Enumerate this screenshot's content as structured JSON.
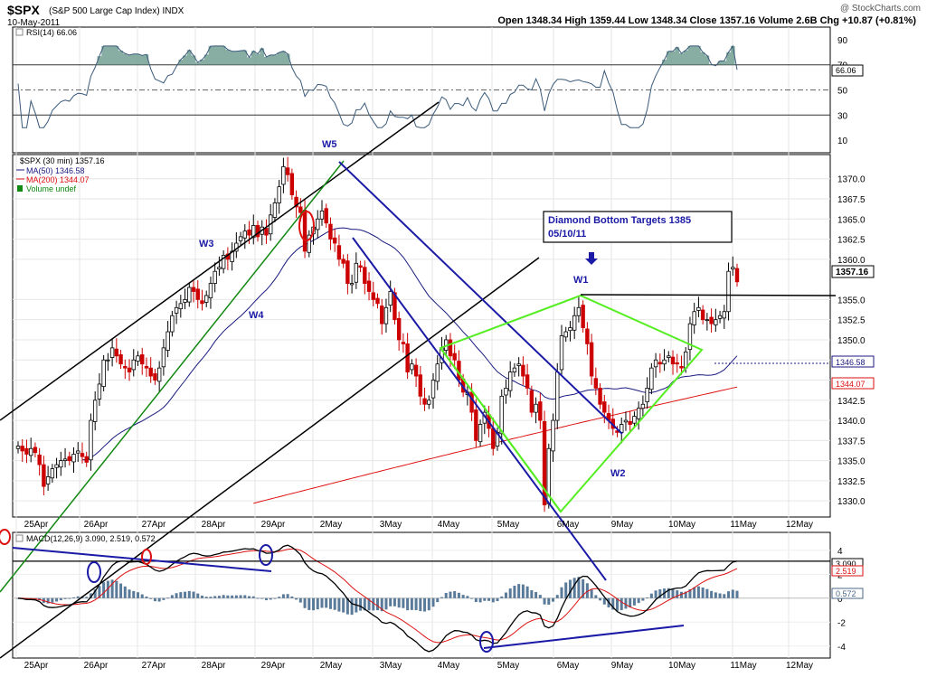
{
  "header": {
    "symbol": "$SPX",
    "name": "(S&P 500 Large Cap Index) INDX",
    "date": "10-May-2011",
    "watermark": "@ StockCharts.com",
    "quote": "Open 1348.34  High 1359.44  Low 1348.34  Close 1357.16  Volume 2.6B  Chg +10.87 (+0.81%)"
  },
  "colors": {
    "up": "#000000",
    "down": "#cc0000",
    "ma50": "#1a1a80",
    "ma200": "#dd1111",
    "annotation_blue": "#1a1aa6",
    "diamond": "#55ee22",
    "channel_green": "#118811",
    "rsi_fill": "#6a9a8c"
  },
  "rsi_panel": {
    "legend": "RSI(14) 66.06",
    "current_label": "66.06",
    "ticks": [
      "90",
      "70",
      "50",
      "30",
      "10"
    ]
  },
  "price_panel": {
    "legend": [
      {
        "text": "$SPX (30 min) 1357.16",
        "color": "#000000"
      },
      {
        "text": "MA(50) 1346.58",
        "color": "#1a1a80"
      },
      {
        "text": "MA(200) 1344.07",
        "color": "#dd1111"
      },
      {
        "text": "Volume undef",
        "color": "#118811"
      }
    ],
    "ticks": [
      "1370.0",
      "1367.5",
      "1365.0",
      "1362.5",
      "1360.0",
      "1355.0",
      "1352.5",
      "1350.0",
      "1347.5",
      "1345.0",
      "1342.5",
      "1340.0",
      "1337.5",
      "1335.0",
      "1332.5",
      "1330.0"
    ],
    "last_price_label": "1357.16",
    "ma50_label": "1346.58",
    "ma200_label": "1344.07",
    "annotations": [
      "W5",
      "W3",
      "W4",
      "W1",
      "W2"
    ],
    "target_box": {
      "line1": "Diamond Bottom Targets 1385",
      "line2": "05/10/11"
    }
  },
  "macd_panel": {
    "legend": "MACD(12,26,9) 3.090, 2.519, 0.572",
    "labels": [
      "3.090",
      "2.519",
      "0.572"
    ],
    "ticks": [
      "4",
      "2",
      "0",
      "-2",
      "-4"
    ]
  },
  "x_axis_labels": [
    "25Apr",
    "26Apr",
    "27Apr",
    "28Apr",
    "29Apr",
    "2May",
    "3May",
    "4May",
    "5May",
    "6May",
    "9May",
    "10May",
    "11May",
    "12May"
  ],
  "chart_data": {
    "type": "candlestick",
    "title": "$SPX (S&P 500 Large Cap Index) INDX",
    "interval": "30 min",
    "categories": [
      "25Apr",
      "26Apr",
      "27Apr",
      "28Apr",
      "29Apr",
      "2May",
      "3May",
      "4May",
      "5May",
      "6May",
      "9May",
      "10May",
      "11May",
      "12May"
    ],
    "ylim": [
      1328,
      1373
    ],
    "close_series": [
      1336.8,
      1336.2,
      1335.8,
      1336.5,
      1336.0,
      1334.5,
      1331.8,
      1333.0,
      1334.0,
      1334.5,
      1335.0,
      1335.2,
      1335.0,
      1335.8,
      1336.2,
      1335.5,
      1334.8,
      1340.0,
      1342.5,
      1344.5,
      1347.5,
      1347.5,
      1349.0,
      1348.0,
      1347.0,
      1346.5,
      1346.0,
      1347.5,
      1348.0,
      1347.0,
      1346.5,
      1345.5,
      1345.0,
      1346.5,
      1349.0,
      1351.0,
      1353.0,
      1354.0,
      1354.5,
      1355.0,
      1356.5,
      1356.0,
      1355.0,
      1354.5,
      1355.5,
      1357.0,
      1358.5,
      1359.0,
      1360.5,
      1360.0,
      1361.0,
      1362.0,
      1362.8,
      1363.5,
      1363.0,
      1364.2,
      1362.8,
      1364.0,
      1363.0,
      1365.5,
      1367.0,
      1369.0,
      1371.5,
      1370.5,
      1368.0,
      1366.5,
      1365.8,
      1361.0,
      1363.0,
      1364.0,
      1365.0,
      1366.0,
      1364.5,
      1362.5,
      1362.0,
      1360.0,
      1359.5,
      1357.0,
      1357.0,
      1359.5,
      1359.0,
      1357.0,
      1356.0,
      1355.0,
      1354.5,
      1352.0,
      1354.0,
      1356.0,
      1352.5,
      1350.0,
      1349.5,
      1346.0,
      1347.0,
      1345.5,
      1343.0,
      1342.0,
      1342.5,
      1345.0,
      1347.0,
      1349.0,
      1350.0,
      1348.0,
      1347.5,
      1345.0,
      1343.5,
      1343.5,
      1341.0,
      1337.5,
      1339.5,
      1341.0,
      1339.0,
      1336.5,
      1338.5,
      1343.0,
      1344.0,
      1346.0,
      1346.5,
      1347.0,
      1345.5,
      1344.0,
      1341.0,
      1342.0,
      1340.0,
      1329.5,
      1336.5,
      1340.0,
      1346.0,
      1350.5,
      1351.0,
      1351.5,
      1353.0,
      1354.0,
      1351.5,
      1349.5,
      1345.5,
      1344.0,
      1342.0,
      1341.0,
      1340.0,
      1339.0,
      1338.5,
      1339.5,
      1340.0,
      1339.5,
      1340.5,
      1341.5,
      1342.0,
      1344.0,
      1346.5,
      1347.5,
      1347.0,
      1347.5,
      1348.0,
      1347.0,
      1347.0,
      1346.5,
      1348.5,
      1352.0,
      1353.5,
      1354.0,
      1352.5,
      1352.5,
      1352.0,
      1352.5,
      1353.0,
      1353.5,
      1358.5,
      1359.0,
      1357.2
    ],
    "rsi": {
      "name": "RSI(14)",
      "last": 66.06,
      "ylim": [
        0,
        100
      ],
      "levels": [
        70,
        30
      ]
    },
    "ma50_last": 1346.58,
    "ma200_last": 1344.07,
    "target": 1385,
    "macd": {
      "name": "MACD(12,26,9)",
      "macd": 3.09,
      "signal": 2.519,
      "histogram": 0.572,
      "ylim": [
        -5,
        5.5
      ]
    }
  }
}
